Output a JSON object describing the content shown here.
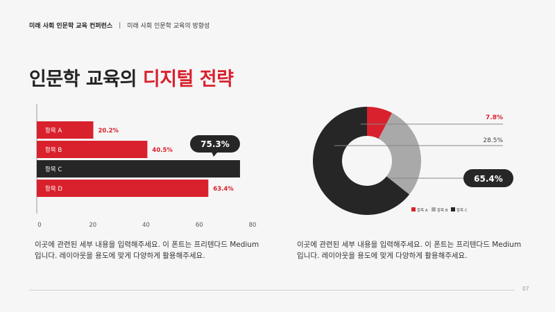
{
  "header": {
    "conference": "미래 사회 인문학 교육 컨퍼런스",
    "separator": "|",
    "subtitle": "미래 사회 인문학 교육의 방향성"
  },
  "title": {
    "part1": "인문학 교육의",
    "accent": "디지털 전략"
  },
  "colors": {
    "red": "#d8212d",
    "dark": "#262626",
    "gray": "#a9a9a9",
    "bar_value_red": "#d8212d"
  },
  "chart_data": [
    {
      "type": "bar",
      "orientation": "horizontal",
      "categories": [
        "항목 A",
        "항목 B",
        "항목 C",
        "항목 D"
      ],
      "values": [
        20.2,
        40.5,
        75.3,
        63.4
      ],
      "value_labels": [
        "20.2%",
        "40.5%",
        "75.3%",
        "63.4%"
      ],
      "highlight_index": 2,
      "xlim": [
        0,
        80
      ],
      "xticks": [
        "0",
        "20",
        "40",
        "60",
        "80"
      ],
      "grid": false
    },
    {
      "type": "pie",
      "donut": true,
      "labels": [
        "항목 A",
        "항목 B",
        "항목 C"
      ],
      "values": [
        7.8,
        28.5,
        65.4
      ],
      "value_labels": [
        "7.8%",
        "28.5%",
        "65.4%"
      ],
      "colors": [
        "#d8212d",
        "#a9a9a9",
        "#262626"
      ],
      "legend": "bottom-right"
    }
  ],
  "descriptions": {
    "left": "이곳에 관련된 세부 내용을 입력해주세요. 이 폰트는 프리텐다드 Medium 입니다. 레이아웃을 용도에 맞게 다양하게 활용해주세요.",
    "right": "이곳에 관련된 세부 내용을 입력해주세요. 이 폰트는 프리텐다드 Medium 입니다. 레이아웃을 용도에 맞게 다양하게 활용해주세요."
  },
  "page_number": "07"
}
